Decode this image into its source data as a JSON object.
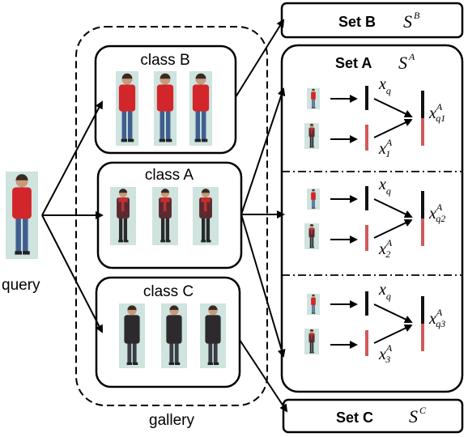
{
  "query": {
    "label": "query"
  },
  "gallery": {
    "label": "gallery",
    "classes": [
      {
        "label": "class B",
        "figure": "red-jacket",
        "count": 3
      },
      {
        "label": "class A",
        "figure": "red-scarf",
        "count": 3
      },
      {
        "label": "class C",
        "figure": "dark-coat",
        "count": 3
      }
    ]
  },
  "sets": {
    "b": {
      "label": "Set B",
      "symbol": "S",
      "sup": "B"
    },
    "a": {
      "label": "Set A",
      "symbol": "S",
      "sup": "A"
    },
    "c": {
      "label": "Set C",
      "symbol": "S",
      "sup": "C"
    }
  },
  "set_a_rows": [
    {
      "xq": "x",
      "xq_sub": "q",
      "xi": "x",
      "xi_sup": "A",
      "xi_sub": "1",
      "out": "x",
      "out_sup": "A",
      "out_sub": "q1"
    },
    {
      "xq": "x",
      "xq_sub": "q",
      "xi": "x",
      "xi_sup": "A",
      "xi_sub": "2",
      "out": "x",
      "out_sup": "A",
      "out_sub": "q2"
    },
    {
      "xq": "x",
      "xq_sub": "q",
      "xi": "x",
      "xi_sup": "A",
      "xi_sub": "3",
      "out": "x",
      "out_sup": "A",
      "out_sub": "q3"
    }
  ],
  "colors": {
    "feature_query": "#111111",
    "feature_gallery": "#d05a5a",
    "jacket_red": "#d3262a",
    "jeans_blue": "#3f5f8f",
    "coat_dark": "#2c2a2c",
    "photo_bg": "#cfe3df"
  }
}
